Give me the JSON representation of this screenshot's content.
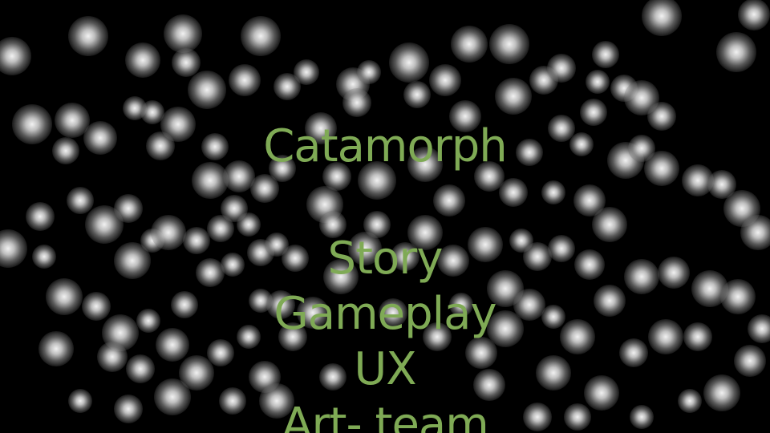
{
  "colors": {
    "background": "#000000",
    "text": "#7faa55"
  },
  "title": "Catamorph",
  "items": [
    "Story",
    "Gameplay",
    "UX",
    "Art- team"
  ]
}
